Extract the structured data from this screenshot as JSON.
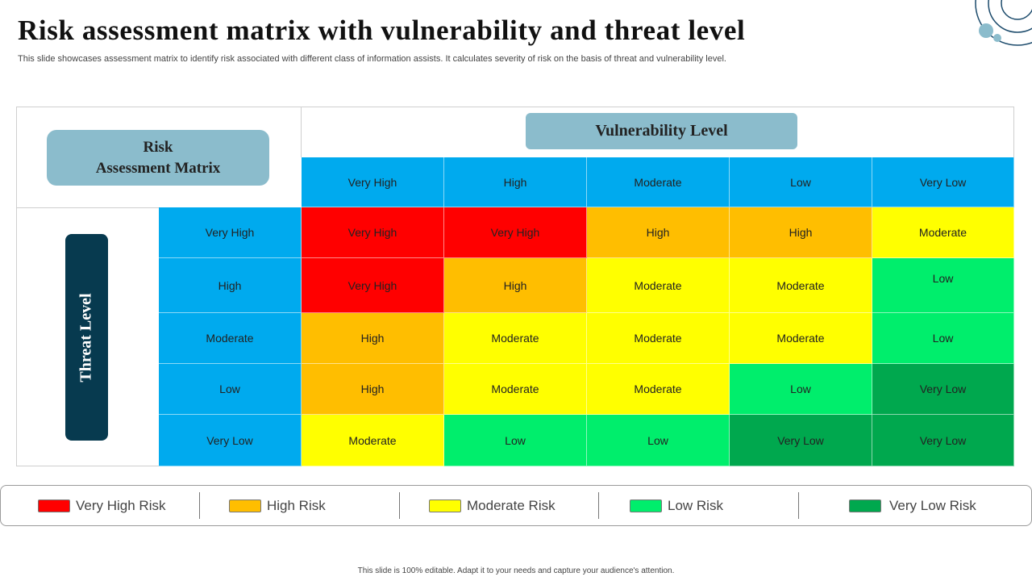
{
  "header": {
    "title": "Risk assessment matrix with vulnerability and threat level",
    "subtitle": "This slide showcases assessment matrix to identify risk associated with different class of information assists. It calculates severity of risk on the basis of threat and vulnerability level."
  },
  "matrix": {
    "corner_label_line1": "Risk",
    "corner_label_line2": "Assessment Matrix",
    "vulnerability_label": "Vulnerability  Level",
    "threat_label": "Threat Level",
    "vulnerability_levels": [
      "Very High",
      "High",
      "Moderate",
      "Low",
      "Very Low"
    ],
    "threat_levels": [
      "Very High",
      "High",
      "Moderate",
      "Low",
      "Very Low"
    ],
    "rows": [
      [
        "Very High",
        "Very High",
        "High",
        "High",
        "Moderate"
      ],
      [
        "Very High",
        "High",
        "Moderate",
        "Moderate",
        "Low"
      ],
      [
        "High",
        "Moderate",
        "Moderate",
        "Moderate",
        "Low"
      ],
      [
        "High",
        "Moderate",
        "Moderate",
        "Low",
        "Very Low"
      ],
      [
        "Moderate",
        "Low",
        "Low",
        "Very Low",
        "Very Low"
      ]
    ]
  },
  "colors": {
    "very_high": "#ff0000",
    "high": "#ffbe00",
    "moderate": "#ffff00",
    "low": "#00ee6c",
    "very_low": "#00a84e",
    "header": "#00aaee",
    "label_box": "#8bbccc",
    "threat_box": "#073a4f"
  },
  "legend": [
    "Very High Risk",
    "High Risk",
    "Moderate Risk",
    "Low Risk",
    "Very Low Risk"
  ],
  "footer": "This slide is 100% editable. Adapt it to your needs and capture your audience's attention."
}
